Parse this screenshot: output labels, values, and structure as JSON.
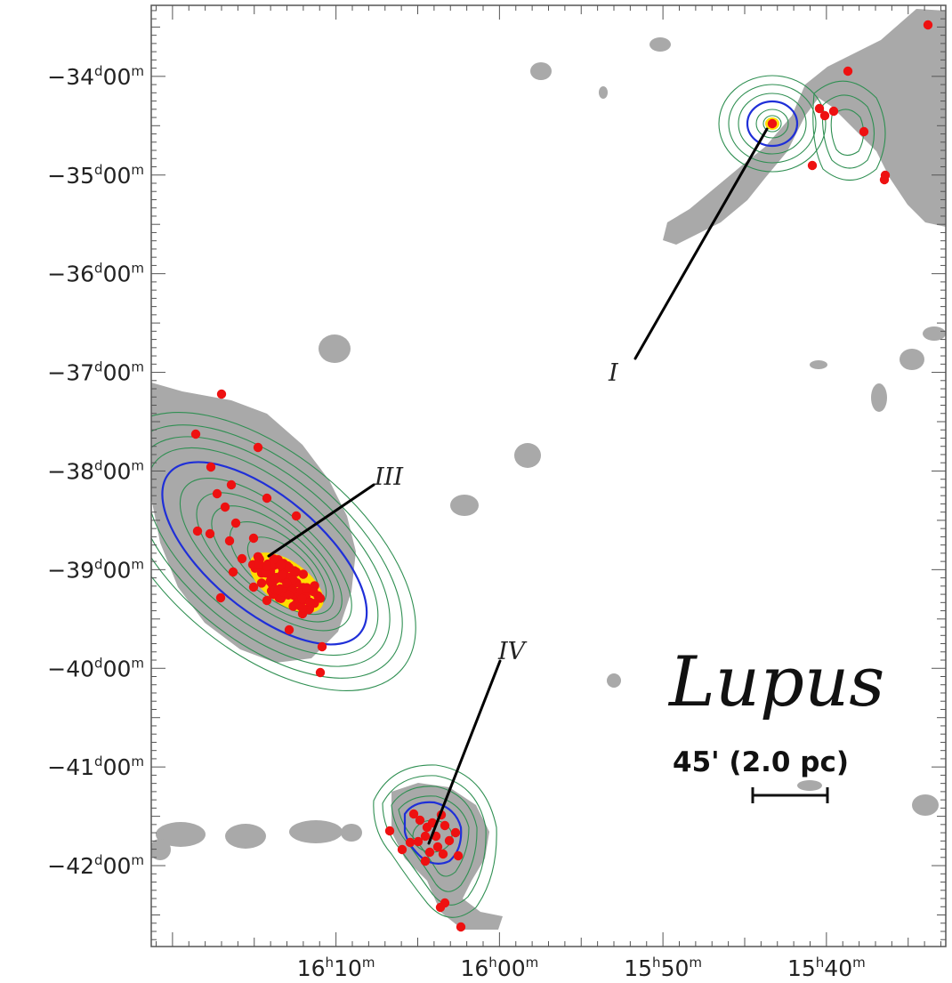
{
  "chart_data": {
    "type": "scatter",
    "title": "Lupus",
    "scale_bar": {
      "label": "45' (2.0 pc)"
    },
    "x_axis": {
      "quantity": "right ascension",
      "range_minutes": [
        981.3,
        932.7
      ],
      "ticks": [
        {
          "value": 970,
          "h": "16",
          "m": "10"
        },
        {
          "value": 960,
          "h": "16",
          "m": "00"
        },
        {
          "value": 950,
          "h": "15",
          "m": "50"
        },
        {
          "value": 940,
          "h": "15",
          "m": "40"
        }
      ]
    },
    "y_axis": {
      "quantity": "declination",
      "range_deg": [
        -33.28,
        -42.82
      ],
      "ticks": [
        {
          "value": -34,
          "d": "−34",
          "m": "00"
        },
        {
          "value": -35,
          "d": "−35",
          "m": "00"
        },
        {
          "value": -36,
          "d": "−36",
          "m": "00"
        },
        {
          "value": -37,
          "d": "−37",
          "m": "00"
        },
        {
          "value": -38,
          "d": "−38",
          "m": "00"
        },
        {
          "value": -39,
          "d": "−39",
          "m": "00"
        },
        {
          "value": -40,
          "d": "−40",
          "m": "00"
        },
        {
          "value": -41,
          "d": "−41",
          "m": "00"
        },
        {
          "value": -42,
          "d": "−42",
          "m": "00"
        }
      ]
    },
    "regions": [
      {
        "name": "I",
        "label": "I"
      },
      {
        "name": "III",
        "label": "III"
      },
      {
        "name": "IV",
        "label": "IV"
      }
    ],
    "colors": {
      "cloud": "#a9a9a9",
      "contour": "#2f8f52",
      "contour_key": "#1f2fd8",
      "density_peak": "#ffdd00",
      "sources": "#ee1111"
    }
  }
}
